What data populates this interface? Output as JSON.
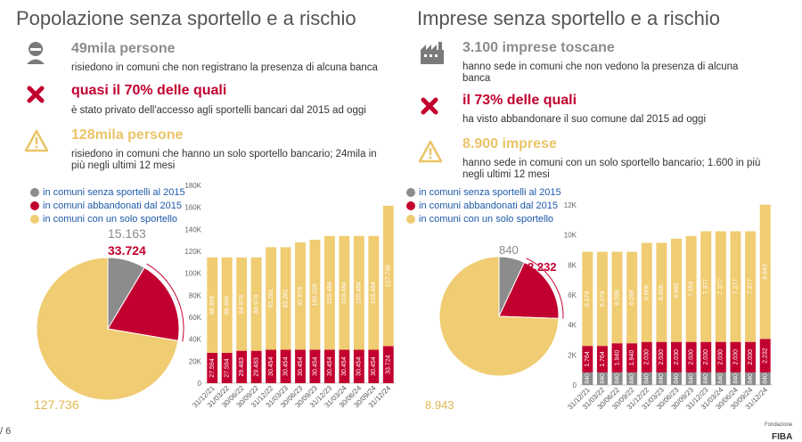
{
  "colors": {
    "gray": "#8c8c8c",
    "red": "#c2002f",
    "yellow": "#f0cc72",
    "axis": "#666666"
  },
  "left": {
    "title": "Popolazione senza sportello e a rischio",
    "stat1": {
      "head": "49mila persone",
      "desc": "risiedono in comuni che non registrano la presenza di alcuna banca",
      "icon": "person-icon"
    },
    "stat2": {
      "head": "quasi il 70% delle quali",
      "desc": "è stato privato dell'accesso agli sportelli bancari dal 2015 ad oggi",
      "icon": "cross-icon"
    },
    "stat3": {
      "head": "128mila persone",
      "desc": "risiedono in comuni che hanno un solo sportello bancario; 24mila in più negli ultimi 12 mesi",
      "icon": "warning-icon"
    },
    "legend": [
      "in comuni senza sportelli al 2015",
      "in comuni abbandonati dal 2015",
      "in comuni con un solo sportello"
    ]
  },
  "right": {
    "title": "Imprese senza sportello e a rischio",
    "stat1": {
      "head": "3.100 imprese toscane",
      "desc": "hanno sede in comuni che non vedono la presenza di alcuna banca",
      "icon": "factory-icon"
    },
    "stat2": {
      "head": "il 73% delle quali",
      "desc": "ha visto abbandonare il suo comune dal 2015 ad oggi",
      "icon": "cross-icon"
    },
    "stat3": {
      "head": "8.900 imprese",
      "desc": "hanno sede in comuni con un solo sportello bancario; 1.600 in più negli ultimi 12 mesi",
      "icon": "warning-icon"
    },
    "legend": [
      "in comuni senza sportelli al 2015",
      "in comuni abbandonati dal 2015",
      "in comuni con un solo sportello"
    ]
  },
  "footer": {
    "page": "/ 6",
    "brand_small": "Fondazione",
    "brand": "FIBA"
  },
  "chart_data": [
    {
      "type": "pie",
      "slices": [
        {
          "name": "in comuni senza sportelli al 2015",
          "value": 15163,
          "label": "15.163",
          "color": "#8c8c8c"
        },
        {
          "name": "in comuni abbandonati dal 2015",
          "value": 33724,
          "label": "33.724",
          "color": "#c2002f"
        },
        {
          "name": "in comuni con un solo sportello",
          "value": 127736,
          "label": "127.736",
          "color": "#f0cc72"
        }
      ]
    },
    {
      "type": "bar",
      "stacked": true,
      "categories": [
        "31/12/21",
        "31/03/22",
        "30/06/22",
        "30/09/22",
        "31/12/22",
        "31/03/23",
        "30/06/23",
        "30/09/23",
        "31/12/23",
        "31/03/24",
        "30/06/24",
        "30/09/24",
        "31/12/24"
      ],
      "series": [
        {
          "color": "#c2002f",
          "values": [
            27594,
            27594,
            29483,
            29483,
            30454,
            30454,
            30454,
            30454,
            30454,
            30454,
            30454,
            30454,
            33724
          ],
          "labels": [
            "27.594",
            "27.594",
            "29.483",
            "29.483",
            "30.454",
            "30.454",
            "30.454",
            "30.454",
            "30.454",
            "30.454",
            "30.454",
            "30.454",
            "33.724"
          ]
        },
        {
          "color": "#f0cc72",
          "values": [
            86865,
            86865,
            84976,
            84976,
            93281,
            93281,
            97676,
            100026,
            103484,
            103484,
            103484,
            103484,
            127736
          ],
          "labels": [
            "86.865",
            "86.865",
            "84.976",
            "84.976",
            "93.281",
            "93.281",
            "97.676",
            "100.026",
            "103.484",
            "103.484",
            "103.484",
            "103.484",
            "127.736"
          ]
        }
      ],
      "ylim": [
        0,
        180000
      ],
      "ticks": [
        0,
        20000,
        40000,
        60000,
        80000,
        100000,
        120000,
        140000,
        160000,
        180000
      ],
      "tick_labels": [
        "0",
        "20K",
        "40K",
        "60K",
        "80K",
        "100K",
        "120K",
        "140K",
        "160K",
        "180K"
      ]
    },
    {
      "type": "pie",
      "slices": [
        {
          "name": "in comuni senza sportelli al 2015",
          "value": 840,
          "label": "840",
          "color": "#8c8c8c"
        },
        {
          "name": "in comuni abbandonati dal 2015",
          "value": 2232,
          "label": "2.232",
          "color": "#c2002f"
        },
        {
          "name": "in comuni con un solo sportello",
          "value": 8943,
          "label": "8.943",
          "color": "#f0cc72"
        }
      ]
    },
    {
      "type": "bar",
      "stacked": true,
      "categories": [
        "31/12/21",
        "31/03/22",
        "30/06/22",
        "30/09/22",
        "31/12/22",
        "31/03/23",
        "30/06/23",
        "30/09/23",
        "31/12/23",
        "31/03/24",
        "30/06/24",
        "30/09/24",
        "31/12/24"
      ],
      "series": [
        {
          "color": "#8c8c8c",
          "values": [
            840,
            840,
            840,
            840,
            840,
            840,
            840,
            840,
            840,
            840,
            840,
            840,
            840
          ],
          "labels": [
            "840",
            "840",
            "840",
            "840",
            "840",
            "840",
            "840",
            "840",
            "840",
            "840",
            "840",
            "840",
            "840"
          ]
        },
        {
          "color": "#c2002f",
          "values": [
            1764,
            1764,
            1940,
            1940,
            2030,
            2030,
            2030,
            2030,
            2030,
            2030,
            2030,
            2030,
            2232
          ],
          "labels": [
            "1.764",
            "1.764",
            "1.940",
            "1.940",
            "2.030",
            "2.030",
            "2.030",
            "2.030",
            "2.030",
            "2.030",
            "2.030",
            "2.030",
            "2.232"
          ]
        },
        {
          "color": "#f0cc72",
          "values": [
            6274,
            6274,
            6098,
            6098,
            6606,
            6606,
            6882,
            7059,
            7377,
            7377,
            7377,
            7377,
            8943
          ],
          "labels": [
            "6.274",
            "6.274",
            "6.098",
            "6.098",
            "6.606",
            "6.606",
            "6.882",
            "7.059",
            "7.377",
            "7.377",
            "7.377",
            "7.377",
            "8.943"
          ]
        }
      ],
      "ylim": [
        0,
        12000
      ],
      "ticks": [
        0,
        2000,
        4000,
        6000,
        8000,
        10000,
        12000
      ],
      "tick_labels": [
        "0",
        "2K",
        "4K",
        "6K",
        "8K",
        "10K",
        "12K"
      ]
    }
  ]
}
